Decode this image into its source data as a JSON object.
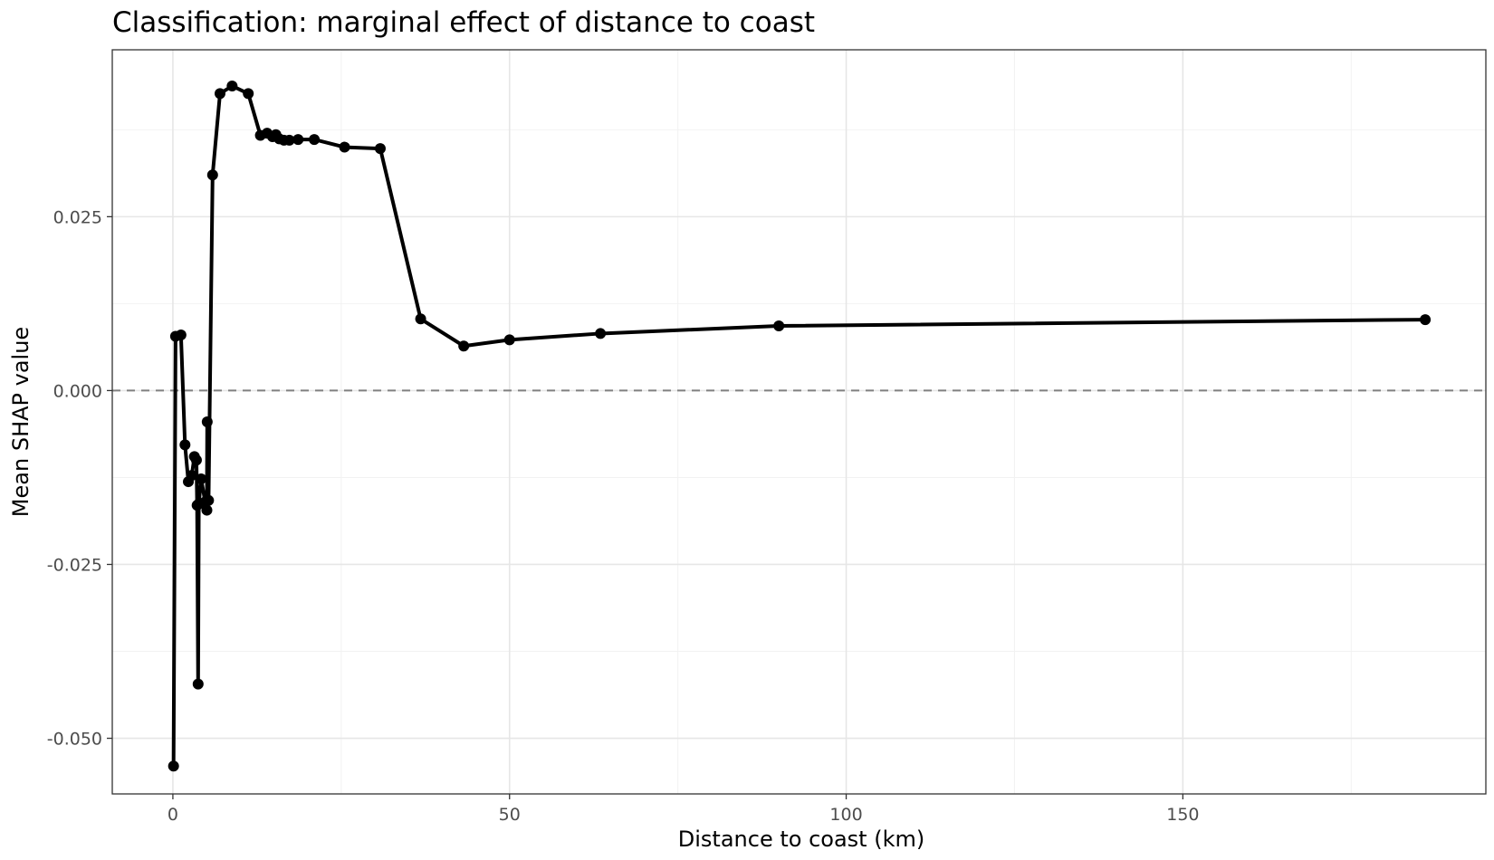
{
  "chart_data": {
    "type": "line",
    "title": "Classification: marginal effect of distance to coast",
    "xlabel": "Distance to coast (km)",
    "ylabel": "Mean SHAP value",
    "xlim": [
      -9,
      195
    ],
    "ylim": [
      -0.058,
      0.049
    ],
    "x_ticks": [
      0,
      50,
      100,
      150
    ],
    "x_tick_labels": [
      "0",
      "50",
      "100",
      "150"
    ],
    "x_minor_ticks": [
      25,
      75,
      125,
      175
    ],
    "y_ticks": [
      -0.05,
      -0.025,
      0.0,
      0.025
    ],
    "y_tick_labels": [
      "-0.050",
      "-0.025",
      "0.000",
      "0.025"
    ],
    "y_minor_ticks": [
      -0.0375,
      -0.0125,
      0.0125,
      0.0375
    ],
    "grid": true,
    "legend": "none",
    "reference_line": {
      "y": 0,
      "style": "dashed",
      "color": "#808080"
    },
    "line_color": "#000000",
    "series": [
      {
        "x": [
          0.1,
          0.4,
          1.2,
          1.8,
          2.3,
          2.8,
          3.2,
          3.5,
          3.6,
          3.75,
          3.85,
          4.2,
          4.8,
          5.05,
          5.1,
          5.3,
          5.9,
          7.0,
          8.8,
          11.2,
          13.0,
          14.0,
          14.8,
          15.3,
          15.8,
          16.5,
          17.3,
          18.6,
          21.0,
          25.5,
          30.8,
          36.8,
          43.2,
          50.0,
          63.5,
          90.0,
          186.0
        ],
        "y": [
          -0.054,
          0.0078,
          0.008,
          -0.0078,
          -0.0131,
          -0.0122,
          -0.0095,
          -0.01,
          -0.0165,
          -0.0422,
          -0.0163,
          -0.0127,
          -0.016,
          -0.0172,
          -0.0045,
          -0.0158,
          0.031,
          0.0427,
          0.0438,
          0.0427,
          0.0367,
          0.037,
          0.0365,
          0.0368,
          0.0362,
          0.036,
          0.036,
          0.0361,
          0.0361,
          0.035,
          0.0348,
          0.0103,
          0.0064,
          0.0073,
          0.0082,
          0.0093,
          0.0102
        ]
      }
    ]
  }
}
